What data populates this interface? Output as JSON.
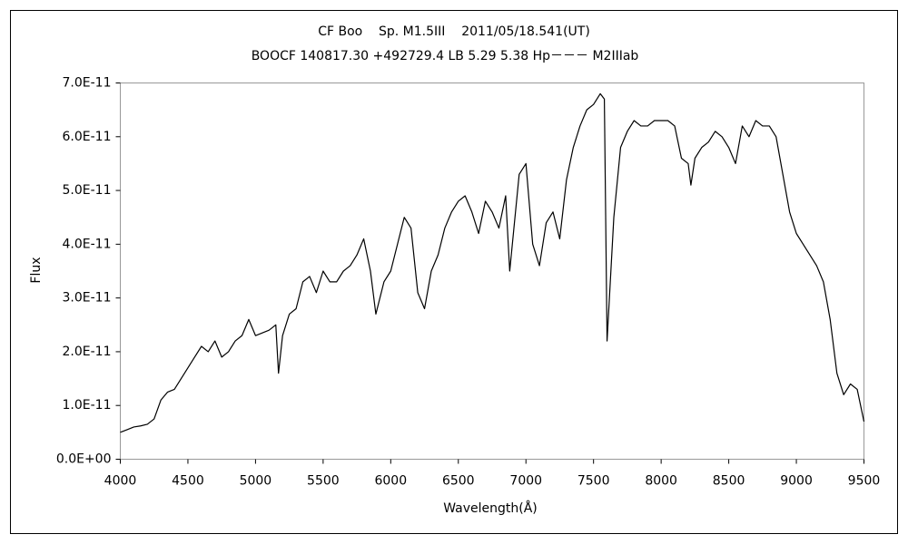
{
  "chart_data": {
    "type": "line",
    "title": "CF Boo    Sp. M1.5III    2011/05/18.541(UT)",
    "subtitle": "BOOCF 140817.30 +492729.4 LB 5.29 5.38 Hp－－－ M2IIIab",
    "x_label": "Wavelength(Å)",
    "y_label": "Flux",
    "xlim": [
      4000,
      9500
    ],
    "xticks": [
      4000,
      4500,
      5000,
      5500,
      6000,
      6500,
      7000,
      7500,
      8000,
      8500,
      9000,
      9500
    ],
    "ylim": [
      0,
      7e-11
    ],
    "yticks": [
      {
        "value": 0,
        "label": "0.0E+00"
      },
      {
        "value": 1e-11,
        "label": "1.0E-11"
      },
      {
        "value": 2e-11,
        "label": "2.0E-11"
      },
      {
        "value": 3e-11,
        "label": "3.0E-11"
      },
      {
        "value": 4e-11,
        "label": "4.0E-11"
      },
      {
        "value": 5e-11,
        "label": "5.0E-11"
      },
      {
        "value": 6e-11,
        "label": "6.0E-11"
      },
      {
        "value": 7e-11,
        "label": "7.0E-11"
      }
    ],
    "grid": false,
    "color": "#000000",
    "x": [
      4000,
      4050,
      4100,
      4150,
      4200,
      4250,
      4300,
      4350,
      4400,
      4450,
      4500,
      4550,
      4600,
      4650,
      4700,
      4750,
      4800,
      4850,
      4900,
      4950,
      5000,
      5050,
      5100,
      5150,
      5170,
      5200,
      5250,
      5300,
      5350,
      5400,
      5450,
      5500,
      5550,
      5600,
      5650,
      5700,
      5750,
      5800,
      5850,
      5890,
      5950,
      6000,
      6050,
      6100,
      6150,
      6200,
      6250,
      6300,
      6350,
      6400,
      6450,
      6500,
      6550,
      6600,
      6650,
      6700,
      6750,
      6800,
      6850,
      6880,
      6950,
      7000,
      7050,
      7100,
      7150,
      7200,
      7250,
      7300,
      7350,
      7400,
      7450,
      7500,
      7550,
      7580,
      7600,
      7650,
      7700,
      7750,
      7800,
      7850,
      7900,
      7950,
      8000,
      8050,
      8100,
      8150,
      8200,
      8220,
      8250,
      8300,
      8350,
      8400,
      8450,
      8500,
      8550,
      8600,
      8650,
      8700,
      8750,
      8800,
      8850,
      8900,
      8950,
      9000,
      9050,
      9100,
      9150,
      9200,
      9250,
      9300,
      9350,
      9400,
      9450,
      9500
    ],
    "values": [
      5e-12,
      5.5e-12,
      6e-12,
      6.2e-12,
      6.5e-12,
      7.5e-12,
      1.1e-11,
      1.25e-11,
      1.3e-11,
      1.5e-11,
      1.7e-11,
      1.9e-11,
      2.1e-11,
      2e-11,
      2.2e-11,
      1.9e-11,
      2e-11,
      2.2e-11,
      2.3e-11,
      2.6e-11,
      2.3e-11,
      2.35e-11,
      2.4e-11,
      2.5e-11,
      1.6e-11,
      2.3e-11,
      2.7e-11,
      2.8e-11,
      3.3e-11,
      3.4e-11,
      3.1e-11,
      3.5e-11,
      3.3e-11,
      3.3e-11,
      3.5e-11,
      3.6e-11,
      3.8e-11,
      4.1e-11,
      3.5e-11,
      2.7e-11,
      3.3e-11,
      3.5e-11,
      4e-11,
      4.5e-11,
      4.3e-11,
      3.1e-11,
      2.8e-11,
      3.5e-11,
      3.8e-11,
      4.3e-11,
      4.6e-11,
      4.8e-11,
      4.9e-11,
      4.6e-11,
      4.2e-11,
      4.8e-11,
      4.6e-11,
      4.3e-11,
      4.9e-11,
      3.5e-11,
      5.3e-11,
      5.5e-11,
      4e-11,
      3.6e-11,
      4.4e-11,
      4.6e-11,
      4.1e-11,
      5.2e-11,
      5.8e-11,
      6.2e-11,
      6.5e-11,
      6.6e-11,
      6.8e-11,
      6.7e-11,
      2.2e-11,
      4.5e-11,
      5.8e-11,
      6.1e-11,
      6.3e-11,
      6.2e-11,
      6.2e-11,
      6.3e-11,
      6.3e-11,
      6.3e-11,
      6.2e-11,
      5.6e-11,
      5.5e-11,
      5.1e-11,
      5.6e-11,
      5.8e-11,
      5.9e-11,
      6.1e-11,
      6e-11,
      5.8e-11,
      5.5e-11,
      6.2e-11,
      6e-11,
      6.3e-11,
      6.2e-11,
      6.2e-11,
      6e-11,
      5.3e-11,
      4.6e-11,
      4.2e-11,
      4e-11,
      3.8e-11,
      3.6e-11,
      3.3e-11,
      2.6e-11,
      1.6e-11,
      1.2e-11,
      1.4e-11,
      1.3e-11,
      7e-12
    ]
  }
}
